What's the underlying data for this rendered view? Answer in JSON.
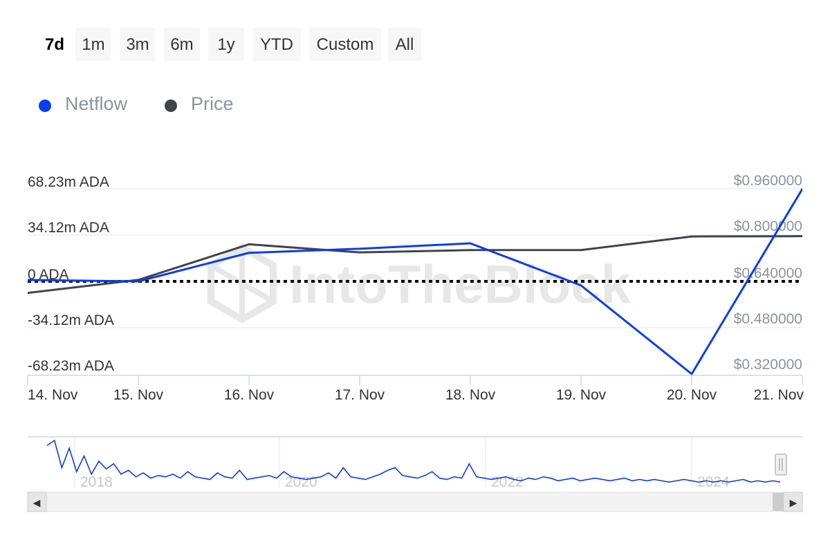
{
  "range_buttons": [
    {
      "label": "7d",
      "active": true
    },
    {
      "label": "1m",
      "active": false
    },
    {
      "label": "3m",
      "active": false
    },
    {
      "label": "6m",
      "active": false
    },
    {
      "label": "1y",
      "active": false
    },
    {
      "label": "YTD",
      "active": false
    },
    {
      "label": "Custom",
      "active": false
    },
    {
      "label": "All",
      "active": false
    }
  ],
  "legend": [
    {
      "label": "Netflow",
      "color": "#0a3cf0"
    },
    {
      "label": "Price",
      "color": "#404448"
    }
  ],
  "watermark": "IntoTheBlock",
  "colors": {
    "netflow": "#0a3cf0",
    "price": "#404448",
    "zero_line": "#000000",
    "grid": "#e6e6e6"
  },
  "chart_data": {
    "type": "line",
    "categories": [
      "14. Nov",
      "15. Nov",
      "16. Nov",
      "17. Nov",
      "18. Nov",
      "19. Nov",
      "20. Nov",
      "21. Nov"
    ],
    "series": [
      {
        "name": "Netflow",
        "axis": "left",
        "values": [
          1.0,
          0.0,
          21.0,
          24.0,
          28.0,
          -3.0,
          -68.23,
          68.0
        ]
      },
      {
        "name": "Price",
        "axis": "right",
        "values": [
          0.6,
          0.645,
          0.768,
          0.74,
          0.748,
          0.748,
          0.795,
          0.796
        ]
      }
    ],
    "y_left": {
      "ticks": [
        "68.23m ADA",
        "34.12m ADA",
        "0 ADA",
        "-34.12m ADA",
        "-68.23m ADA"
      ],
      "range": [
        -68.23,
        68.23
      ]
    },
    "y_right": {
      "ticks": [
        "$0.960000",
        "$0.800000",
        "$0.640000",
        "$0.480000",
        "$0.320000"
      ],
      "range": [
        0.32,
        0.96
      ]
    },
    "zero_line": "dotted",
    "grid": true,
    "legend_position": "top-left"
  },
  "navigator": {
    "year_labels": [
      "2018",
      "2020",
      "2022",
      "2024"
    ],
    "overview_values": [
      62,
      70,
      28,
      58,
      22,
      46,
      18,
      38,
      26,
      34,
      18,
      24,
      14,
      20,
      12,
      16,
      14,
      18,
      12,
      22,
      14,
      12,
      10,
      20,
      14,
      12,
      24,
      10,
      12,
      14,
      16,
      12,
      22,
      14,
      12,
      10,
      12,
      14,
      20,
      12,
      28,
      14,
      12,
      10,
      14,
      18,
      24,
      28,
      16,
      14,
      12,
      16,
      22,
      12,
      10,
      14,
      12,
      34,
      14,
      12,
      10,
      12,
      14,
      10,
      8,
      12,
      10,
      14,
      12,
      8,
      10,
      12,
      8,
      10,
      12,
      10,
      8,
      10,
      12,
      8,
      10,
      8,
      10,
      8,
      6,
      8,
      10,
      8,
      6,
      8,
      6,
      8,
      6,
      8,
      10,
      6,
      8,
      6,
      8,
      6
    ],
    "scroll_left_label": "◀",
    "scroll_right_label": "▶"
  }
}
